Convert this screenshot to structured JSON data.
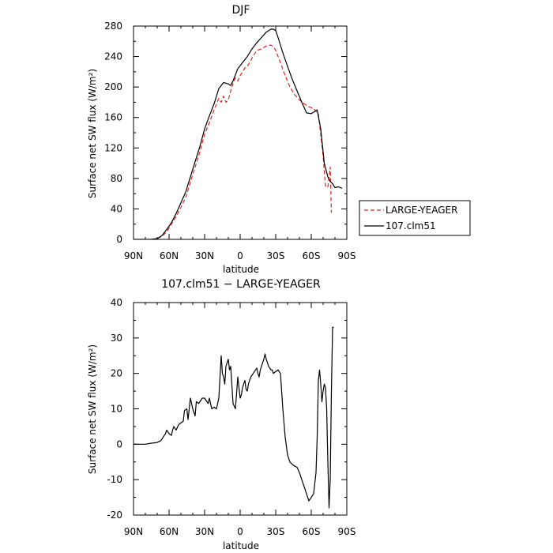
{
  "chart_data": [
    {
      "type": "line",
      "title": "DJF",
      "xlabel": "latitude",
      "ylabel": "Surface net SW flux (W/m²)",
      "xlim": [
        90,
        -90
      ],
      "ylim": [
        0,
        280
      ],
      "x_ticks": [
        90,
        60,
        30,
        0,
        -30,
        -60,
        -90
      ],
      "x_tick_labels": [
        "90N",
        "60N",
        "30N",
        "0",
        "30S",
        "60S",
        "90S"
      ],
      "y_ticks": [
        0,
        40,
        80,
        120,
        160,
        200,
        240,
        280
      ],
      "y_tick_labels": [
        "0",
        "40",
        "80",
        "120",
        "160",
        "200",
        "240",
        "280"
      ],
      "legend": {
        "placement": "right-bottom"
      },
      "series": [
        {
          "name": "LARGE-YEAGER",
          "color": "#e8201f",
          "dash": "dashed",
          "x": [
            75,
            70,
            66,
            62,
            58,
            54,
            50,
            46,
            42,
            38,
            34,
            30,
            26,
            22,
            18,
            16,
            14,
            12,
            10,
            8,
            6,
            4,
            2,
            0,
            -2,
            -4,
            -6,
            -8,
            -10,
            -14,
            -18,
            -22,
            -26,
            -28,
            -30,
            -34,
            -38,
            -42,
            -46,
            -50,
            -54,
            -58,
            -62,
            -64,
            -66,
            -70,
            -72,
            -74,
            -76,
            -77
          ],
          "y": [
            0,
            1,
            4,
            10,
            20,
            30,
            42,
            55,
            75,
            95,
            115,
            138,
            153,
            170,
            185,
            180,
            188,
            180,
            183,
            195,
            205,
            212,
            208,
            215,
            220,
            225,
            227,
            232,
            238,
            248,
            250,
            254,
            255,
            253,
            248,
            232,
            215,
            200,
            190,
            183,
            178,
            174,
            172,
            168,
            165,
            110,
            70,
            68,
            95,
            35
          ]
        },
        {
          "name": "107.clm51",
          "color": "#000000",
          "dash": "solid",
          "x": [
            90,
            80,
            75,
            70,
            66,
            62,
            58,
            54,
            50,
            46,
            42,
            38,
            34,
            30,
            26,
            22,
            18,
            14,
            12,
            10,
            8,
            6,
            4,
            2,
            0,
            -2,
            -6,
            -10,
            -14,
            -18,
            -22,
            -26,
            -28,
            -30,
            -32,
            -36,
            -40,
            -44,
            -48,
            -52,
            -56,
            -60,
            -62,
            -63,
            -65,
            -68,
            -71,
            -74,
            -76,
            -78,
            -80,
            -83,
            -86
          ],
          "y": [
            0,
            0,
            0,
            1,
            5,
            13,
            22,
            34,
            48,
            62,
            82,
            102,
            122,
            145,
            162,
            178,
            198,
            206,
            205,
            204,
            202,
            208,
            216,
            224,
            228,
            232,
            240,
            250,
            258,
            265,
            272,
            276,
            276,
            274,
            265,
            245,
            227,
            210,
            195,
            180,
            166,
            165,
            167,
            168,
            170,
            145,
            100,
            82,
            76,
            73,
            68,
            69,
            67
          ]
        }
      ]
    },
    {
      "type": "line",
      "title": "107.clm51 − LARGE-YEAGER",
      "xlabel": "latitude",
      "ylabel": "Surface net SW flux (W/m²)",
      "xlim": [
        90,
        -90
      ],
      "ylim": [
        -20,
        40
      ],
      "x_ticks": [
        90,
        60,
        30,
        0,
        -30,
        -60,
        -90
      ],
      "x_tick_labels": [
        "90N",
        "60N",
        "30N",
        "0",
        "30S",
        "60S",
        "90S"
      ],
      "y_ticks": [
        -20,
        -10,
        0,
        10,
        20,
        30,
        40
      ],
      "y_tick_labels": [
        "-20",
        "-10",
        "0",
        "10",
        "20",
        "30",
        "40"
      ],
      "series": [
        {
          "color": "#000000",
          "dash": "solid",
          "x": [
            90,
            80,
            75,
            70,
            67,
            65,
            63,
            62,
            60,
            58,
            57,
            56,
            54,
            52,
            50,
            48,
            47,
            45,
            44,
            42,
            40,
            38,
            37,
            35,
            34,
            32,
            30,
            28,
            27,
            26,
            24,
            22,
            20,
            18,
            16,
            15,
            14,
            13,
            12,
            11,
            10,
            9,
            8,
            6,
            4,
            2,
            0,
            -1,
            -2,
            -3,
            -4,
            -5,
            -6,
            -7,
            -8,
            -9,
            -10,
            -11,
            -12,
            -13,
            -14,
            -15,
            -16,
            -17,
            -18,
            -19,
            -20,
            -21,
            -22,
            -23,
            -24,
            -25,
            -26,
            -27,
            -28,
            -30,
            -32,
            -34,
            -36,
            -38,
            -40,
            -42,
            -45,
            -48,
            -50,
            -52,
            -54,
            -56,
            -58,
            -60,
            -62,
            -64,
            -65,
            -66,
            -67,
            -68,
            -69,
            -70,
            -71,
            -72,
            -73,
            -74,
            -75,
            -76,
            -77,
            -78,
            -79
          ],
          "y": [
            0,
            0,
            0.3,
            0.5,
            1,
            2,
            3,
            4,
            3,
            2.5,
            4,
            5,
            4,
            5.5,
            6,
            6.5,
            9.5,
            10,
            7,
            13,
            10,
            8,
            12,
            11.5,
            12,
            13,
            13,
            12,
            11.5,
            13,
            10,
            10.5,
            10,
            13,
            25,
            20,
            19,
            17,
            22,
            23,
            24,
            21,
            22,
            11.5,
            10,
            19,
            13,
            14,
            16,
            17,
            18,
            15.5,
            15,
            17,
            18,
            19,
            19.5,
            20,
            20.5,
            21,
            21.5,
            20,
            19,
            21,
            22,
            23,
            24,
            25.5,
            24,
            23,
            22,
            21.5,
            21,
            21,
            20,
            20.5,
            21,
            20,
            10,
            2,
            -3,
            -5,
            -6,
            -6.5,
            -8,
            -10,
            -12,
            -14,
            -16,
            -15,
            -14,
            -8,
            2,
            18,
            21,
            17,
            12,
            15,
            17,
            16,
            10,
            -5,
            -18,
            -10,
            15,
            33,
            33
          ]
        }
      ]
    }
  ]
}
